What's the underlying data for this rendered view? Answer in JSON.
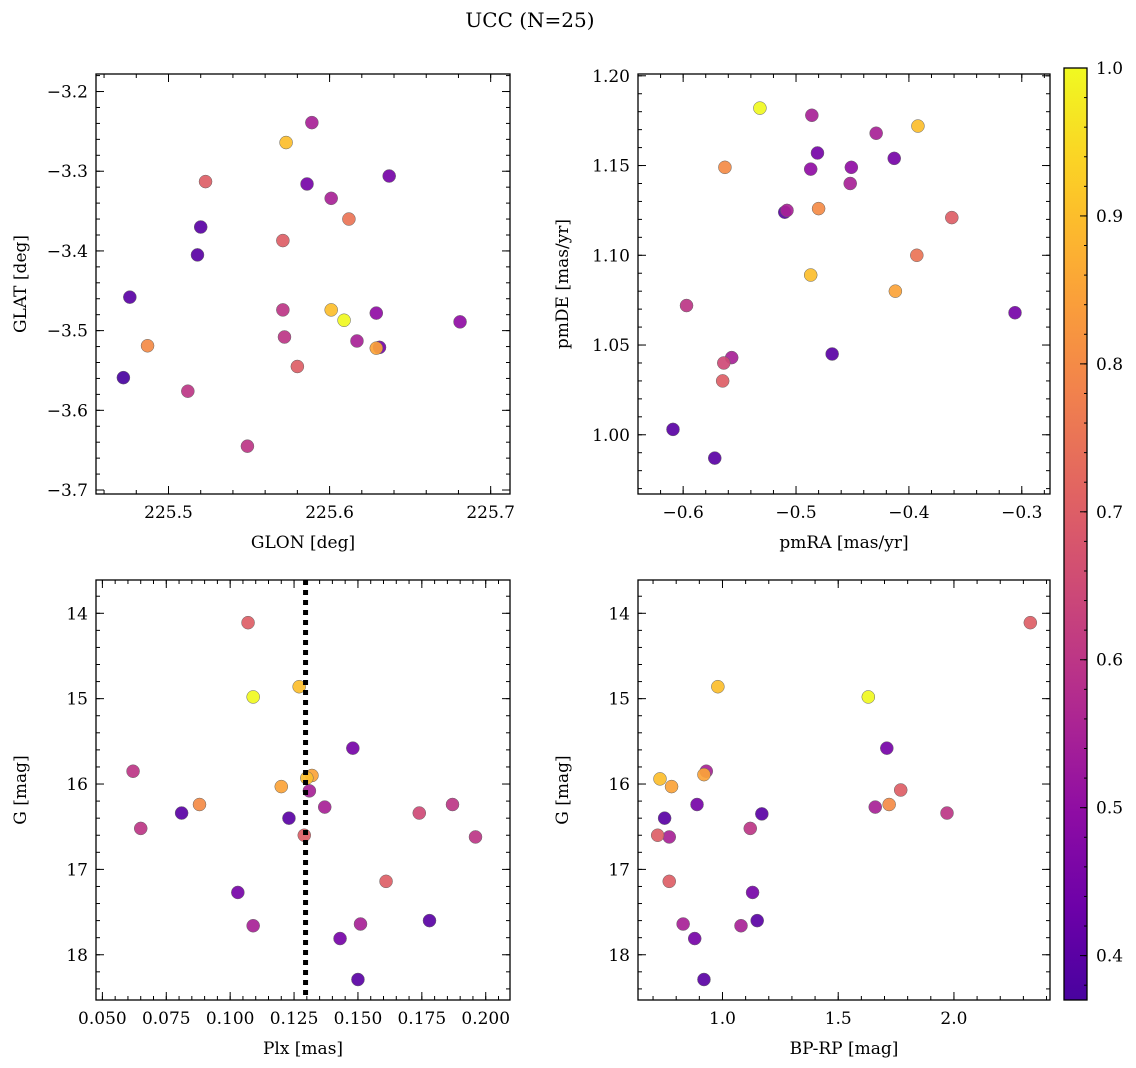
{
  "figure": {
    "title": "UCC (N=25)",
    "colorbar": {
      "colormap": "plasma",
      "range": [
        0.37,
        1.0
      ],
      "ticks": [
        0.4,
        0.5,
        0.6,
        0.7,
        0.8,
        0.9,
        1.0
      ],
      "tick_labels": [
        "0.4",
        "0.5",
        "0.6",
        "0.7",
        "0.8",
        "0.9",
        "1.0"
      ]
    }
  },
  "chart_data": [
    {
      "type": "scatter",
      "panel": "top-left",
      "xlabel": "GLON [deg]",
      "ylabel": "GLAT [deg]",
      "xlim": [
        225.455,
        225.712
      ],
      "ylim": [
        -3.705,
        -3.178
      ],
      "xticks": [
        225.5,
        225.6,
        225.7
      ],
      "xtick_labels": [
        "225.5",
        "225.6",
        "225.7"
      ],
      "yticks": [
        -3.7,
        -3.6,
        -3.5,
        -3.4,
        -3.3,
        -3.2
      ],
      "ytick_labels": [
        "−3.7",
        "−3.6",
        "−3.5",
        "−3.4",
        "−3.3",
        "−3.2"
      ],
      "points": [
        {
          "x": 225.589,
          "y": -3.239,
          "c": 0.55
        },
        {
          "x": 225.573,
          "y": -3.264,
          "c": 0.9
        },
        {
          "x": 225.523,
          "y": -3.313,
          "c": 0.7
        },
        {
          "x": 225.586,
          "y": -3.316,
          "c": 0.45
        },
        {
          "x": 225.601,
          "y": -3.334,
          "c": 0.55
        },
        {
          "x": 225.637,
          "y": -3.306,
          "c": 0.45
        },
        {
          "x": 225.52,
          "y": -3.37,
          "c": 0.4
        },
        {
          "x": 225.612,
          "y": -3.36,
          "c": 0.75
        },
        {
          "x": 225.571,
          "y": -3.387,
          "c": 0.7
        },
        {
          "x": 225.518,
          "y": -3.405,
          "c": 0.4
        },
        {
          "x": 225.476,
          "y": -3.458,
          "c": 0.4
        },
        {
          "x": 225.571,
          "y": -3.474,
          "c": 0.6
        },
        {
          "x": 225.601,
          "y": -3.474,
          "c": 0.9
        },
        {
          "x": 225.609,
          "y": -3.487,
          "c": 1.0
        },
        {
          "x": 225.629,
          "y": -3.478,
          "c": 0.5
        },
        {
          "x": 225.681,
          "y": -3.489,
          "c": 0.5
        },
        {
          "x": 225.487,
          "y": -3.519,
          "c": 0.8
        },
        {
          "x": 225.572,
          "y": -3.508,
          "c": 0.6
        },
        {
          "x": 225.617,
          "y": -3.513,
          "c": 0.55
        },
        {
          "x": 225.631,
          "y": -3.521,
          "c": 0.45
        },
        {
          "x": 225.629,
          "y": -3.522,
          "c": 0.85
        },
        {
          "x": 225.58,
          "y": -3.545,
          "c": 0.7
        },
        {
          "x": 225.472,
          "y": -3.559,
          "c": 0.37
        },
        {
          "x": 225.512,
          "y": -3.576,
          "c": 0.6
        },
        {
          "x": 225.549,
          "y": -3.645,
          "c": 0.6
        }
      ]
    },
    {
      "type": "scatter",
      "panel": "top-right",
      "xlabel": "pmRA [mas/yr]",
      "ylabel": "pmDE [mas/yr]",
      "xlim": [
        -0.64,
        -0.275
      ],
      "ylim": [
        0.967,
        1.201
      ],
      "xticks": [
        -0.6,
        -0.5,
        -0.4,
        -0.3
      ],
      "xtick_labels": [
        "−0.6",
        "−0.5",
        "−0.4",
        "−0.3"
      ],
      "yticks": [
        1.0,
        1.05,
        1.1,
        1.15,
        1.2
      ],
      "ytick_labels": [
        "1.00",
        "1.05",
        "1.10",
        "1.15",
        "1.20"
      ],
      "points": [
        {
          "x": -0.532,
          "y": 1.182,
          "c": 1.0
        },
        {
          "x": -0.486,
          "y": 1.178,
          "c": 0.55
        },
        {
          "x": -0.392,
          "y": 1.172,
          "c": 0.9
        },
        {
          "x": -0.429,
          "y": 1.168,
          "c": 0.55
        },
        {
          "x": -0.481,
          "y": 1.157,
          "c": 0.45
        },
        {
          "x": -0.413,
          "y": 1.154,
          "c": 0.45
        },
        {
          "x": -0.563,
          "y": 1.149,
          "c": 0.8
        },
        {
          "x": -0.451,
          "y": 1.149,
          "c": 0.5
        },
        {
          "x": -0.487,
          "y": 1.148,
          "c": 0.5
        },
        {
          "x": -0.452,
          "y": 1.14,
          "c": 0.55
        },
        {
          "x": -0.48,
          "y": 1.126,
          "c": 0.8
        },
        {
          "x": -0.508,
          "y": 1.125,
          "c": 0.55
        },
        {
          "x": -0.51,
          "y": 1.124,
          "c": 0.4
        },
        {
          "x": -0.362,
          "y": 1.121,
          "c": 0.7
        },
        {
          "x": -0.393,
          "y": 1.1,
          "c": 0.75
        },
        {
          "x": -0.487,
          "y": 1.089,
          "c": 0.9
        },
        {
          "x": -0.412,
          "y": 1.08,
          "c": 0.85
        },
        {
          "x": -0.597,
          "y": 1.072,
          "c": 0.6
        },
        {
          "x": -0.306,
          "y": 1.068,
          "c": 0.45
        },
        {
          "x": -0.468,
          "y": 1.045,
          "c": 0.4
        },
        {
          "x": -0.557,
          "y": 1.043,
          "c": 0.55
        },
        {
          "x": -0.564,
          "y": 1.04,
          "c": 0.65
        },
        {
          "x": -0.565,
          "y": 1.03,
          "c": 0.7
        },
        {
          "x": -0.609,
          "y": 1.003,
          "c": 0.4
        },
        {
          "x": -0.572,
          "y": 0.987,
          "c": 0.4
        }
      ]
    },
    {
      "type": "scatter",
      "panel": "bottom-left",
      "xlabel": "Plx [mas]",
      "ylabel": "G [mag]",
      "xlim": [
        0.0475,
        0.2095
      ],
      "ylim": [
        18.53,
        13.61
      ],
      "y_inverted": true,
      "xticks": [
        0.05,
        0.075,
        0.1,
        0.125,
        0.15,
        0.175,
        0.2
      ],
      "xtick_labels": [
        "0.050",
        "0.075",
        "0.100",
        "0.125",
        "0.150",
        "0.175",
        "0.200"
      ],
      "yticks": [
        14,
        15,
        16,
        17,
        18
      ],
      "ytick_labels": [
        "14",
        "15",
        "16",
        "17",
        "18"
      ],
      "vline": {
        "x": 0.1295,
        "style": "dotted",
        "color": "#000000"
      },
      "points": [
        {
          "x": 0.107,
          "y": 14.11,
          "c": 0.7
        },
        {
          "x": 0.109,
          "y": 14.98,
          "c": 1.0
        },
        {
          "x": 0.127,
          "y": 14.86,
          "c": 0.9
        },
        {
          "x": 0.148,
          "y": 15.58,
          "c": 0.45
        },
        {
          "x": 0.062,
          "y": 15.85,
          "c": 0.6
        },
        {
          "x": 0.132,
          "y": 15.9,
          "c": 0.85
        },
        {
          "x": 0.13,
          "y": 15.93,
          "c": 0.9
        },
        {
          "x": 0.12,
          "y": 16.03,
          "c": 0.85
        },
        {
          "x": 0.131,
          "y": 16.08,
          "c": 0.55
        },
        {
          "x": 0.088,
          "y": 16.24,
          "c": 0.8
        },
        {
          "x": 0.187,
          "y": 16.24,
          "c": 0.6
        },
        {
          "x": 0.137,
          "y": 16.27,
          "c": 0.55
        },
        {
          "x": 0.081,
          "y": 16.34,
          "c": 0.4
        },
        {
          "x": 0.174,
          "y": 16.34,
          "c": 0.65
        },
        {
          "x": 0.123,
          "y": 16.4,
          "c": 0.4
        },
        {
          "x": 0.065,
          "y": 16.52,
          "c": 0.6
        },
        {
          "x": 0.129,
          "y": 16.6,
          "c": 0.7
        },
        {
          "x": 0.196,
          "y": 16.62,
          "c": 0.6
        },
        {
          "x": 0.161,
          "y": 17.14,
          "c": 0.7
        },
        {
          "x": 0.103,
          "y": 17.27,
          "c": 0.45
        },
        {
          "x": 0.178,
          "y": 17.6,
          "c": 0.4
        },
        {
          "x": 0.151,
          "y": 17.64,
          "c": 0.55
        },
        {
          "x": 0.109,
          "y": 17.66,
          "c": 0.55
        },
        {
          "x": 0.143,
          "y": 17.81,
          "c": 0.45
        },
        {
          "x": 0.15,
          "y": 18.29,
          "c": 0.4
        }
      ]
    },
    {
      "type": "scatter",
      "panel": "bottom-right",
      "xlabel": "BP-RP [mag]",
      "ylabel": "G [mag]",
      "xlim": [
        0.635,
        2.415
      ],
      "ylim": [
        18.53,
        13.61
      ],
      "y_inverted": true,
      "xticks": [
        1.0,
        1.5,
        2.0
      ],
      "xtick_labels": [
        "1.0",
        "1.5",
        "2.0"
      ],
      "yticks": [
        14,
        15,
        16,
        17,
        18
      ],
      "ytick_labels": [
        "14",
        "15",
        "16",
        "17",
        "18"
      ],
      "points": [
        {
          "x": 2.33,
          "y": 14.11,
          "c": 0.7
        },
        {
          "x": 0.98,
          "y": 14.86,
          "c": 0.9
        },
        {
          "x": 1.63,
          "y": 14.98,
          "c": 1.0
        },
        {
          "x": 1.71,
          "y": 15.58,
          "c": 0.45
        },
        {
          "x": 0.93,
          "y": 15.85,
          "c": 0.55
        },
        {
          "x": 0.92,
          "y": 15.89,
          "c": 0.85
        },
        {
          "x": 0.73,
          "y": 15.94,
          "c": 0.9
        },
        {
          "x": 0.78,
          "y": 16.03,
          "c": 0.85
        },
        {
          "x": 1.77,
          "y": 16.07,
          "c": 0.7
        },
        {
          "x": 0.89,
          "y": 16.24,
          "c": 0.45
        },
        {
          "x": 1.72,
          "y": 16.24,
          "c": 0.8
        },
        {
          "x": 1.66,
          "y": 16.27,
          "c": 0.55
        },
        {
          "x": 1.97,
          "y": 16.34,
          "c": 0.6
        },
        {
          "x": 1.17,
          "y": 16.35,
          "c": 0.4
        },
        {
          "x": 0.75,
          "y": 16.4,
          "c": 0.4
        },
        {
          "x": 1.12,
          "y": 16.52,
          "c": 0.6
        },
        {
          "x": 0.72,
          "y": 16.6,
          "c": 0.7
        },
        {
          "x": 0.77,
          "y": 16.62,
          "c": 0.55
        },
        {
          "x": 0.77,
          "y": 17.14,
          "c": 0.7
        },
        {
          "x": 1.13,
          "y": 17.27,
          "c": 0.45
        },
        {
          "x": 1.15,
          "y": 17.6,
          "c": 0.4
        },
        {
          "x": 0.83,
          "y": 17.64,
          "c": 0.55
        },
        {
          "x": 1.08,
          "y": 17.66,
          "c": 0.55
        },
        {
          "x": 0.88,
          "y": 17.81,
          "c": 0.45
        },
        {
          "x": 0.92,
          "y": 18.29,
          "c": 0.4
        }
      ]
    }
  ]
}
